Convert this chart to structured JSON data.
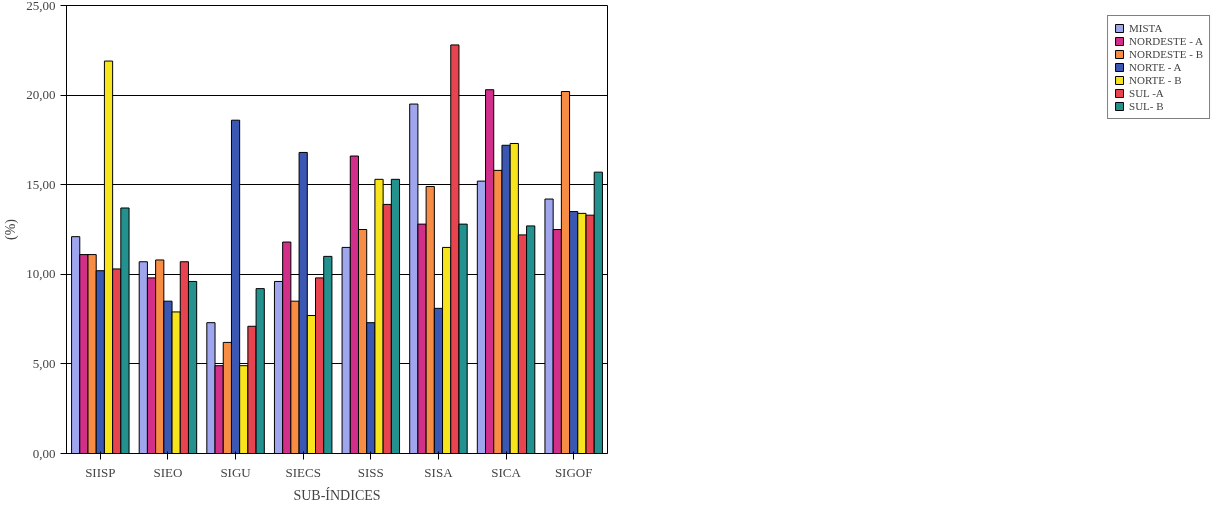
{
  "chart_data": {
    "type": "bar",
    "xlabel": "SUB-ÍNDICES",
    "ylabel": "(%)",
    "categories": [
      "SIISP",
      "SIEO",
      "SIGU",
      "SIECS",
      "SISS",
      "SISA",
      "SICA",
      "SIGOF"
    ],
    "series": [
      {
        "name": "MISTA",
        "color": "#9fa6ee",
        "values": [
          12.1,
          10.7,
          7.3,
          9.6,
          11.5,
          19.5,
          15.2,
          14.2
        ]
      },
      {
        "name": "NORDESTE - A",
        "color": "#d12f8a",
        "values": [
          11.1,
          9.8,
          4.9,
          11.8,
          16.6,
          12.8,
          20.3,
          12.5
        ]
      },
      {
        "name": "NORDESTE - B",
        "color": "#f78c45",
        "values": [
          11.1,
          10.8,
          6.2,
          8.5,
          12.5,
          14.9,
          15.8,
          20.2
        ]
      },
      {
        "name": "NORTE - A",
        "color": "#3a57b3",
        "values": [
          10.2,
          8.5,
          18.6,
          16.8,
          7.3,
          8.1,
          17.2,
          13.5
        ]
      },
      {
        "name": "NORTE - B",
        "color": "#f8e41c",
        "values": [
          21.9,
          7.9,
          4.9,
          7.7,
          15.3,
          11.5,
          17.3,
          13.4
        ]
      },
      {
        "name": "SUL -A",
        "color": "#e8444f",
        "values": [
          10.3,
          10.7,
          7.1,
          9.8,
          13.9,
          22.8,
          12.2,
          13.3
        ]
      },
      {
        "name": "SUL- B",
        "color": "#23928f",
        "values": [
          13.7,
          9.6,
          9.2,
          11.0,
          15.3,
          12.8,
          12.7,
          15.7
        ]
      }
    ],
    "ylim": [
      0,
      25
    ],
    "yticks": [
      {
        "value": 0,
        "label": "0,00"
      },
      {
        "value": 5,
        "label": "5,00"
      },
      {
        "value": 10,
        "label": "10,00"
      },
      {
        "value": 15,
        "label": "15,00"
      },
      {
        "value": 20,
        "label": "20,00"
      },
      {
        "value": 25,
        "label": "25,00"
      }
    ],
    "grid": "y",
    "legend": "top right"
  }
}
